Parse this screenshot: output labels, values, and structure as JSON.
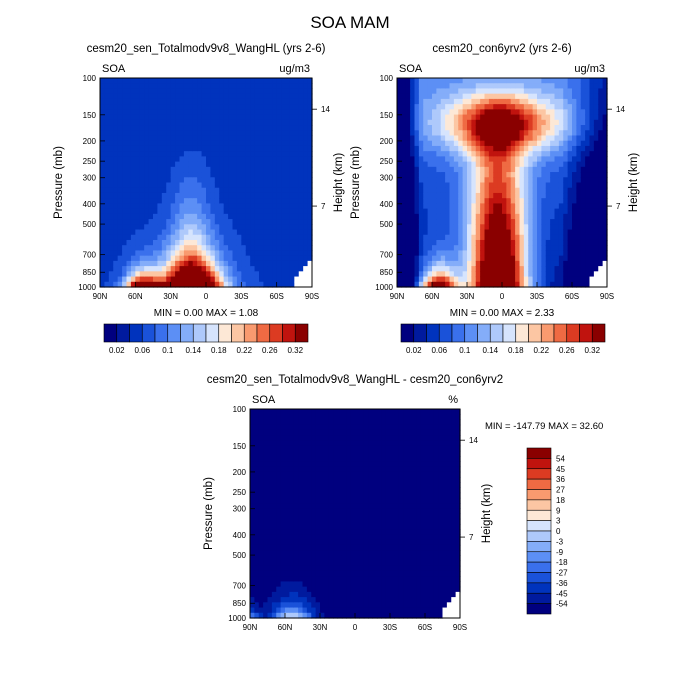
{
  "figure": {
    "title": "SOA MAM"
  },
  "chart_data": [
    {
      "type": "heatmap",
      "title": "cesm20_sen_Totalmodv9v8_WangHL (yrs 2-6)",
      "left_label": "SOA",
      "units": "ug/m3",
      "ylabel": "Pressure (mb)",
      "ylabel_right": "Height (km)",
      "x_ticks": [
        "90N",
        "60N",
        "30N",
        "0",
        "30S",
        "60S",
        "90S"
      ],
      "y_ticks": [
        100,
        150,
        200,
        250,
        300,
        400,
        500,
        700,
        850,
        1000
      ],
      "y_scale": "log-pressure",
      "height_ticks": [
        14,
        7
      ],
      "stats": "MIN =   0.00   MAX =    1.08",
      "levels": [
        0.02,
        0.04,
        0.06,
        0.08,
        0.1,
        0.12,
        0.14,
        0.16,
        0.18,
        0.2,
        0.22,
        0.24,
        0.26,
        0.28,
        0.3,
        0.32
      ],
      "colorbar_labels": [
        "0.02",
        "0.06",
        "0.1",
        "0.14",
        "0.18",
        "0.22",
        "0.26",
        "0.32"
      ],
      "colorbar": "horizontal"
    },
    {
      "type": "heatmap",
      "title": "cesm20_con6yrv2 (yrs 2-6)",
      "left_label": "SOA",
      "units": "ug/m3",
      "ylabel": "Pressure (mb)",
      "ylabel_right": "Height (km)",
      "x_ticks": [
        "90N",
        "60N",
        "30N",
        "0",
        "30S",
        "60S",
        "90S"
      ],
      "y_ticks": [
        100,
        150,
        200,
        250,
        300,
        400,
        500,
        700,
        850,
        1000
      ],
      "y_scale": "log-pressure",
      "height_ticks": [
        14,
        7
      ],
      "stats": "MIN =   0.00   MAX =    2.33",
      "levels": [
        0.02,
        0.04,
        0.06,
        0.08,
        0.1,
        0.12,
        0.14,
        0.16,
        0.18,
        0.2,
        0.22,
        0.24,
        0.26,
        0.28,
        0.3,
        0.32
      ],
      "colorbar_labels": [
        "0.02",
        "0.06",
        "0.1",
        "0.14",
        "0.18",
        "0.22",
        "0.26",
        "0.32"
      ],
      "colorbar": "horizontal"
    },
    {
      "type": "heatmap",
      "title": "cesm20_sen_Totalmodv9v8_WangHL - cesm20_con6yrv2",
      "left_label": "SOA",
      "units": "%",
      "ylabel": "Pressure (mb)",
      "ylabel_right": "Height (km)",
      "x_ticks": [
        "90N",
        "60N",
        "30N",
        "0",
        "30S",
        "60S",
        "90S"
      ],
      "y_ticks": [
        100,
        150,
        200,
        250,
        300,
        400,
        500,
        700,
        850,
        1000
      ],
      "y_scale": "log-pressure",
      "height_ticks": [
        14,
        7
      ],
      "stats": "MIN = -147.79  MAX =   32.60",
      "levels": [
        -54,
        -45,
        -36,
        -27,
        -18,
        -9,
        -3,
        0,
        3,
        9,
        18,
        27,
        36,
        45,
        54
      ],
      "colorbar_labels": [
        "54",
        "45",
        "36",
        "27",
        "18",
        "9",
        "3",
        "0",
        "-3",
        "-9",
        "-18",
        "-27",
        "-36",
        "-45",
        "-54"
      ],
      "colorbar": "vertical"
    }
  ],
  "colors": {
    "scale": [
      "#00007f",
      "#001a9e",
      "#0033bd",
      "#1a52d9",
      "#3a70ec",
      "#5c8ff5",
      "#84adf9",
      "#aec9fb",
      "#d6e4fd",
      "#fde8d6",
      "#fcc6a3",
      "#f99a6f",
      "#ef6a43",
      "#dc3b22",
      "#c0130e",
      "#8a0000"
    ]
  }
}
